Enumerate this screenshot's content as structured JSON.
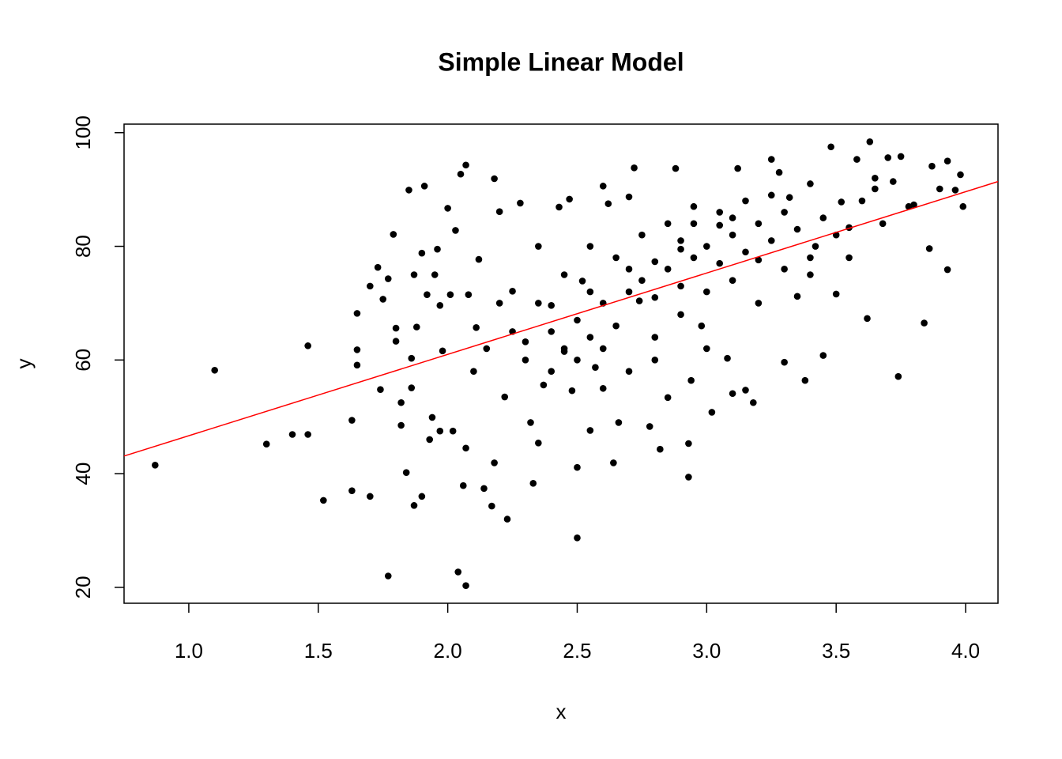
{
  "chart_data": {
    "type": "scatter",
    "title": "Simple Linear Model",
    "x_label": "x",
    "y_label": "y",
    "series": [
      {
        "color": "#000000",
        "x": [
          0.87,
          1.1,
          1.3,
          1.4,
          1.46,
          1.46,
          1.52,
          1.63,
          1.63,
          1.65,
          1.65,
          1.65,
          1.7,
          1.7,
          1.73,
          1.74,
          1.75,
          1.77,
          1.77,
          1.79,
          1.8,
          1.8,
          1.82,
          1.82,
          1.84,
          1.85,
          1.86,
          1.86,
          1.87,
          1.87,
          1.88,
          1.9,
          1.9,
          1.91,
          1.92,
          1.93,
          1.94,
          1.95,
          1.96,
          1.97,
          1.97,
          1.98,
          2.0,
          2.01,
          2.02,
          2.03,
          2.04,
          2.05,
          2.06,
          2.07,
          2.07,
          2.07,
          2.08,
          2.11,
          2.12,
          2.14,
          2.17,
          2.18,
          2.18,
          2.2,
          2.22,
          2.23,
          2.25,
          2.28,
          2.3,
          2.32,
          2.33,
          2.35,
          2.37,
          2.4,
          2.43,
          2.45,
          2.47,
          2.48,
          2.5,
          2.5,
          2.52,
          2.55,
          2.57,
          2.6,
          2.62,
          2.64,
          2.66,
          2.7,
          2.72,
          2.74,
          2.78,
          2.8,
          2.82,
          2.85,
          2.88,
          2.9,
          2.93,
          2.93,
          2.94,
          2.95,
          2.98,
          3.02,
          3.05,
          3.08,
          3.1,
          3.12,
          3.15,
          3.18,
          3.2,
          3.25,
          3.28,
          3.3,
          3.32,
          3.35,
          3.38,
          3.4,
          3.42,
          3.45,
          3.48,
          3.5,
          3.52,
          3.55,
          3.58,
          3.62,
          3.63,
          3.65,
          3.68,
          3.7,
          3.72,
          3.74,
          3.75,
          3.78,
          3.8,
          3.84,
          3.86,
          3.87,
          3.9,
          3.93,
          3.93,
          3.96,
          3.98,
          3.99,
          2.4,
          2.45,
          2.5,
          2.55,
          2.6,
          2.65,
          2.7,
          2.75,
          2.8,
          2.85,
          2.9,
          2.95,
          3.0,
          3.05,
          3.1,
          3.15,
          3.2,
          3.25,
          3.3,
          3.35,
          3.4,
          2.5,
          2.6,
          2.7,
          2.8,
          2.9,
          3.0,
          3.1,
          3.2,
          3.3,
          2.35,
          2.45,
          2.55,
          2.65,
          2.75,
          2.85,
          2.95,
          3.05,
          3.15,
          3.25,
          2.3,
          2.4,
          2.6,
          2.8,
          3.0,
          2.55,
          2.7,
          2.9,
          3.1,
          3.45,
          3.5,
          3.6,
          3.65,
          3.4,
          3.55,
          2.25,
          2.2,
          2.15,
          2.1,
          2.35
        ],
        "y": [
          41.5,
          58.2,
          45.2,
          46.9,
          46.9,
          62.5,
          35.3,
          37.0,
          49.4,
          68.2,
          61.8,
          59.1,
          36.0,
          73.0,
          76.3,
          54.8,
          70.7,
          22.0,
          74.3,
          82.1,
          65.6,
          63.3,
          52.5,
          48.5,
          40.2,
          89.9,
          55.1,
          60.3,
          34.4,
          75.0,
          65.8,
          78.8,
          36.0,
          90.6,
          71.5,
          46.0,
          49.9,
          75.0,
          79.5,
          69.6,
          47.5,
          61.6,
          86.7,
          71.5,
          47.5,
          82.8,
          22.7,
          92.7,
          37.9,
          94.3,
          20.3,
          44.5,
          71.5,
          65.7,
          77.7,
          37.4,
          34.3,
          91.9,
          41.9,
          86.1,
          53.5,
          32.0,
          72.1,
          87.6,
          63.2,
          49.0,
          38.3,
          45.4,
          55.6,
          69.6,
          86.9,
          61.5,
          88.3,
          54.6,
          28.7,
          41.1,
          73.9,
          47.6,
          58.7,
          90.6,
          87.5,
          41.9,
          49.0,
          88.7,
          93.8,
          70.4,
          48.3,
          77.3,
          44.3,
          53.4,
          93.7,
          79.5,
          39.4,
          45.3,
          56.4,
          84.0,
          66.0,
          50.8,
          83.7,
          60.3,
          54.1,
          93.7,
          54.7,
          52.5,
          77.6,
          95.3,
          93.0,
          59.6,
          88.6,
          71.2,
          56.4,
          91.0,
          80.0,
          60.8,
          97.5,
          71.6,
          87.8,
          83.3,
          95.3,
          67.3,
          98.4,
          90.1,
          84.0,
          95.6,
          91.4,
          57.1,
          95.8,
          87.0,
          87.3,
          66.5,
          79.6,
          94.1,
          90.1,
          75.9,
          95.0,
          89.9,
          92.6,
          87.0,
          65,
          62,
          67,
          64,
          70,
          66,
          72,
          74,
          71,
          76,
          73,
          78,
          80,
          77,
          82,
          79,
          84,
          81,
          86,
          83,
          78,
          60,
          62,
          58,
          64,
          68,
          72,
          74,
          70,
          76,
          70,
          75,
          80,
          78,
          82,
          84,
          87,
          86,
          88,
          89,
          60,
          58,
          55,
          60,
          62,
          72,
          76,
          81,
          85,
          85,
          82,
          88,
          92,
          75,
          78,
          65,
          70,
          62,
          58,
          80
        ]
      }
    ],
    "fit_line": {
      "color": "#ff0000",
      "x": [
        0.75,
        4.125
      ],
      "y": [
        43.1,
        91.4
      ]
    },
    "xlim": [
      0.75,
      4.125
    ],
    "ylim": [
      17.2,
      101.5
    ],
    "xticks": [
      {
        "value": 1,
        "label": "1.0"
      },
      {
        "value": 1.5,
        "label": "1.5"
      },
      {
        "value": 2,
        "label": "2.0"
      },
      {
        "value": 2.5,
        "label": "2.5"
      },
      {
        "value": 3,
        "label": "3.0"
      },
      {
        "value": 3.5,
        "label": "3.5"
      },
      {
        "value": 4,
        "label": "4.0"
      }
    ],
    "yticks": [
      20,
      40,
      60,
      80,
      100
    ]
  }
}
